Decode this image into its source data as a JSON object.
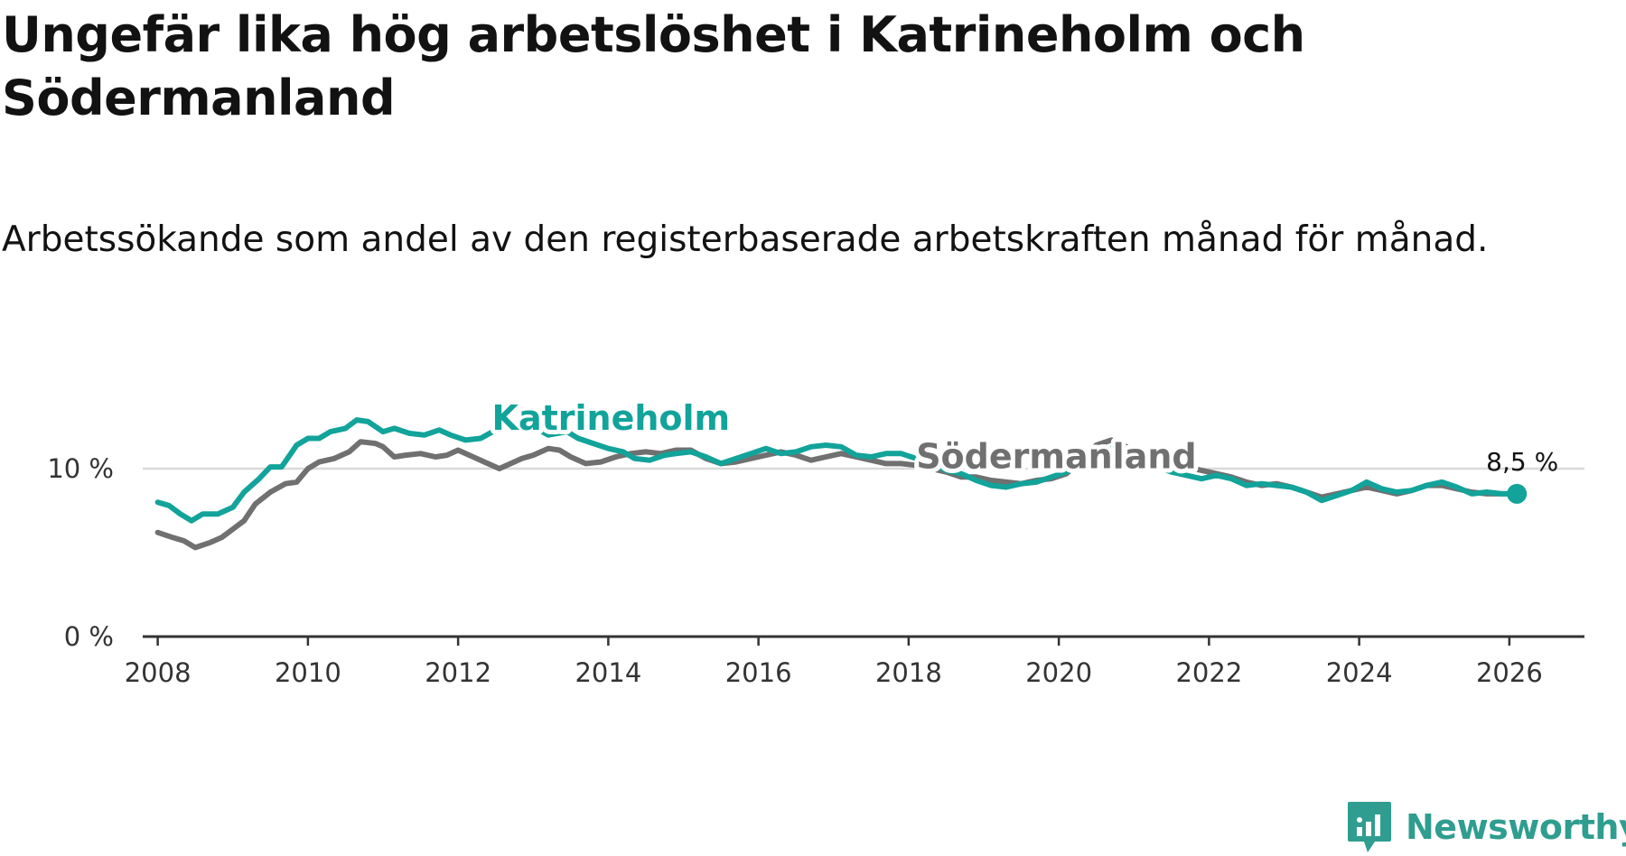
{
  "title": "Ungefär lika hög arbetslöshet i Katrineholm och Södermanland",
  "subtitle": "Arbetssökande som andel av den registerbaserade arbetskraften månad för månad.",
  "brand": {
    "name": "Newsworthy",
    "icon": "newsworthy-logo-icon"
  },
  "colors": {
    "katrineholm": "#12a39a",
    "sodermanland": "#707070",
    "grid": "#d9d9d9",
    "axis": "#333333"
  },
  "chart_data": {
    "type": "line",
    "title": "Ungefär lika hög arbetslöshet i Katrineholm och Södermanland",
    "xlabel": "",
    "ylabel": "",
    "xlim": [
      2007.8,
      2027.0
    ],
    "ylim": [
      0,
      14
    ],
    "x_ticks": [
      2008,
      2010,
      2012,
      2014,
      2016,
      2018,
      2020,
      2022,
      2024,
      2026
    ],
    "x_tick_labels": [
      "2008",
      "2010",
      "2012",
      "2014",
      "2016",
      "2018",
      "2020",
      "2022",
      "2024",
      "2026"
    ],
    "y_ticks": [
      0,
      10
    ],
    "y_tick_labels": [
      "0 %",
      "10 %"
    ],
    "grid": true,
    "series": [
      {
        "name": "Södermanland",
        "label": "Södermanland",
        "color": "#707070",
        "points": [
          [
            2008.0,
            6.2
          ],
          [
            2008.2,
            5.9
          ],
          [
            2008.35,
            5.7
          ],
          [
            2008.5,
            5.3
          ],
          [
            2008.7,
            5.6
          ],
          [
            2008.85,
            5.9
          ],
          [
            2009.0,
            6.4
          ],
          [
            2009.15,
            6.9
          ],
          [
            2009.3,
            7.9
          ],
          [
            2009.5,
            8.6
          ],
          [
            2009.7,
            9.1
          ],
          [
            2009.85,
            9.2
          ],
          [
            2010.0,
            10.0
          ],
          [
            2010.15,
            10.4
          ],
          [
            2010.35,
            10.6
          ],
          [
            2010.55,
            11.0
          ],
          [
            2010.7,
            11.6
          ],
          [
            2010.9,
            11.5
          ],
          [
            2011.0,
            11.3
          ],
          [
            2011.15,
            10.7
          ],
          [
            2011.3,
            10.8
          ],
          [
            2011.5,
            10.9
          ],
          [
            2011.7,
            10.7
          ],
          [
            2011.85,
            10.8
          ],
          [
            2012.0,
            11.1
          ],
          [
            2012.15,
            10.8
          ],
          [
            2012.35,
            10.4
          ],
          [
            2012.55,
            10.0
          ],
          [
            2012.7,
            10.3
          ],
          [
            2012.85,
            10.6
          ],
          [
            2013.0,
            10.8
          ],
          [
            2013.2,
            11.2
          ],
          [
            2013.35,
            11.1
          ],
          [
            2013.5,
            10.7
          ],
          [
            2013.7,
            10.3
          ],
          [
            2013.9,
            10.4
          ],
          [
            2014.1,
            10.7
          ],
          [
            2014.3,
            10.9
          ],
          [
            2014.5,
            11.0
          ],
          [
            2014.7,
            10.9
          ],
          [
            2014.9,
            11.1
          ],
          [
            2015.1,
            11.1
          ],
          [
            2015.3,
            10.6
          ],
          [
            2015.5,
            10.3
          ],
          [
            2015.7,
            10.4
          ],
          [
            2015.9,
            10.6
          ],
          [
            2016.1,
            10.8
          ],
          [
            2016.3,
            11.0
          ],
          [
            2016.5,
            10.8
          ],
          [
            2016.7,
            10.5
          ],
          [
            2016.9,
            10.7
          ],
          [
            2017.1,
            10.9
          ],
          [
            2017.3,
            10.7
          ],
          [
            2017.5,
            10.5
          ],
          [
            2017.7,
            10.3
          ],
          [
            2017.9,
            10.3
          ],
          [
            2018.1,
            10.2
          ],
          [
            2018.3,
            10.0
          ],
          [
            2018.5,
            9.8
          ],
          [
            2018.7,
            9.5
          ],
          [
            2018.9,
            9.5
          ],
          [
            2019.1,
            9.3
          ],
          [
            2019.3,
            9.2
          ],
          [
            2019.5,
            9.1
          ],
          [
            2019.7,
            9.3
          ],
          [
            2019.9,
            9.4
          ],
          [
            2020.1,
            9.7
          ],
          [
            2020.3,
            10.5
          ],
          [
            2020.5,
            11.4
          ],
          [
            2020.7,
            11.7
          ],
          [
            2020.9,
            11.3
          ],
          [
            2021.1,
            10.8
          ],
          [
            2021.3,
            10.5
          ],
          [
            2021.5,
            10.3
          ],
          [
            2021.7,
            10.1
          ],
          [
            2021.9,
            9.9
          ],
          [
            2022.1,
            9.7
          ],
          [
            2022.3,
            9.5
          ],
          [
            2022.5,
            9.2
          ],
          [
            2022.7,
            9.0
          ],
          [
            2022.9,
            9.1
          ],
          [
            2023.1,
            8.9
          ],
          [
            2023.3,
            8.6
          ],
          [
            2023.5,
            8.3
          ],
          [
            2023.7,
            8.5
          ],
          [
            2023.9,
            8.7
          ],
          [
            2024.1,
            8.9
          ],
          [
            2024.3,
            8.7
          ],
          [
            2024.5,
            8.5
          ],
          [
            2024.7,
            8.7
          ],
          [
            2024.9,
            9.0
          ],
          [
            2025.1,
            9.0
          ],
          [
            2025.3,
            8.8
          ],
          [
            2025.5,
            8.6
          ],
          [
            2025.7,
            8.5
          ],
          [
            2025.9,
            8.5
          ],
          [
            2026.1,
            8.5
          ]
        ]
      },
      {
        "name": "Katrineholm",
        "label": "Katrineholm",
        "color": "#12a39a",
        "end_value_label": "8,5 %",
        "points": [
          [
            2008.0,
            8.0
          ],
          [
            2008.15,
            7.8
          ],
          [
            2008.3,
            7.3
          ],
          [
            2008.45,
            6.9
          ],
          [
            2008.6,
            7.3
          ],
          [
            2008.8,
            7.3
          ],
          [
            2009.0,
            7.7
          ],
          [
            2009.15,
            8.6
          ],
          [
            2009.35,
            9.4
          ],
          [
            2009.5,
            10.1
          ],
          [
            2009.65,
            10.1
          ],
          [
            2009.85,
            11.4
          ],
          [
            2010.0,
            11.8
          ],
          [
            2010.15,
            11.8
          ],
          [
            2010.3,
            12.2
          ],
          [
            2010.5,
            12.4
          ],
          [
            2010.65,
            12.9
          ],
          [
            2010.8,
            12.8
          ],
          [
            2011.0,
            12.2
          ],
          [
            2011.15,
            12.4
          ],
          [
            2011.35,
            12.1
          ],
          [
            2011.55,
            12.0
          ],
          [
            2011.75,
            12.3
          ],
          [
            2011.9,
            12.0
          ],
          [
            2012.1,
            11.7
          ],
          [
            2012.3,
            11.8
          ],
          [
            2012.5,
            12.3
          ],
          [
            2012.7,
            12.8
          ],
          [
            2012.85,
            12.5
          ],
          [
            2013.0,
            12.5
          ],
          [
            2013.2,
            12.0
          ],
          [
            2013.45,
            12.2
          ],
          [
            2013.6,
            11.8
          ],
          [
            2013.8,
            11.5
          ],
          [
            2014.0,
            11.2
          ],
          [
            2014.2,
            11.0
          ],
          [
            2014.35,
            10.6
          ],
          [
            2014.55,
            10.5
          ],
          [
            2014.75,
            10.8
          ],
          [
            2014.9,
            10.9
          ],
          [
            2015.1,
            11.0
          ],
          [
            2015.3,
            10.7
          ],
          [
            2015.5,
            10.3
          ],
          [
            2015.7,
            10.6
          ],
          [
            2015.9,
            10.9
          ],
          [
            2016.1,
            11.2
          ],
          [
            2016.3,
            10.9
          ],
          [
            2016.5,
            11.0
          ],
          [
            2016.7,
            11.3
          ],
          [
            2016.9,
            11.4
          ],
          [
            2017.1,
            11.3
          ],
          [
            2017.3,
            10.8
          ],
          [
            2017.5,
            10.7
          ],
          [
            2017.7,
            10.9
          ],
          [
            2017.9,
            10.9
          ],
          [
            2018.1,
            10.6
          ],
          [
            2018.3,
            10.3
          ],
          [
            2018.5,
            9.9
          ],
          [
            2018.7,
            9.7
          ],
          [
            2018.9,
            9.3
          ],
          [
            2019.1,
            9.0
          ],
          [
            2019.3,
            8.9
          ],
          [
            2019.5,
            9.1
          ],
          [
            2019.7,
            9.2
          ],
          [
            2019.9,
            9.5
          ],
          [
            2020.1,
            9.8
          ],
          [
            2020.3,
            10.3
          ],
          [
            2020.5,
            10.9
          ],
          [
            2020.7,
            11.2
          ],
          [
            2020.9,
            10.8
          ],
          [
            2021.1,
            10.5
          ],
          [
            2021.3,
            10.1
          ],
          [
            2021.5,
            9.8
          ],
          [
            2021.7,
            9.6
          ],
          [
            2021.9,
            9.4
          ],
          [
            2022.1,
            9.6
          ],
          [
            2022.3,
            9.4
          ],
          [
            2022.5,
            9.0
          ],
          [
            2022.7,
            9.1
          ],
          [
            2022.9,
            9.0
          ],
          [
            2023.1,
            8.9
          ],
          [
            2023.3,
            8.6
          ],
          [
            2023.5,
            8.1
          ],
          [
            2023.7,
            8.4
          ],
          [
            2023.9,
            8.7
          ],
          [
            2024.1,
            9.2
          ],
          [
            2024.3,
            8.8
          ],
          [
            2024.5,
            8.6
          ],
          [
            2024.7,
            8.7
          ],
          [
            2024.9,
            9.0
          ],
          [
            2025.1,
            9.2
          ],
          [
            2025.3,
            8.9
          ],
          [
            2025.5,
            8.5
          ],
          [
            2025.7,
            8.6
          ],
          [
            2025.9,
            8.5
          ],
          [
            2026.1,
            8.5
          ]
        ]
      }
    ]
  }
}
